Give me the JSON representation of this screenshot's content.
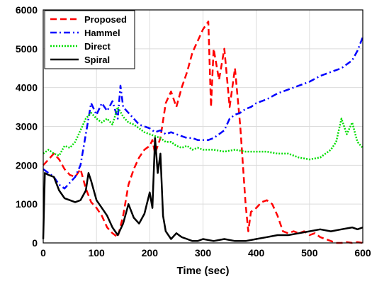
{
  "chart_data": {
    "type": "line",
    "title": "",
    "xlabel": "Time (sec)",
    "ylabel": "",
    "xlim": [
      0,
      600
    ],
    "ylim": [
      0,
      6000
    ],
    "xticks": [
      0,
      100,
      200,
      300,
      400,
      500,
      600
    ],
    "yticks": [
      0,
      1000,
      2000,
      3000,
      4000,
      5000,
      6000
    ],
    "grid": true,
    "legend_position": "top-left",
    "series": [
      {
        "name": "Proposed",
        "color": "#ff0000",
        "dash": "dashed",
        "points": [
          [
            0,
            2000
          ],
          [
            10,
            2150
          ],
          [
            20,
            2300
          ],
          [
            30,
            2150
          ],
          [
            40,
            1900
          ],
          [
            50,
            1750
          ],
          [
            60,
            1700
          ],
          [
            70,
            1900
          ],
          [
            80,
            1400
          ],
          [
            90,
            1050
          ],
          [
            100,
            900
          ],
          [
            110,
            700
          ],
          [
            120,
            400
          ],
          [
            130,
            250
          ],
          [
            140,
            150
          ],
          [
            150,
            700
          ],
          [
            160,
            1500
          ],
          [
            170,
            1900
          ],
          [
            180,
            2200
          ],
          [
            190,
            2400
          ],
          [
            200,
            2500
          ],
          [
            205,
            2650
          ],
          [
            210,
            2300
          ],
          [
            220,
            2700
          ],
          [
            230,
            3600
          ],
          [
            240,
            3900
          ],
          [
            250,
            3500
          ],
          [
            260,
            4000
          ],
          [
            270,
            4400
          ],
          [
            280,
            4900
          ],
          [
            290,
            5200
          ],
          [
            300,
            5500
          ],
          [
            310,
            5700
          ],
          [
            315,
            3500
          ],
          [
            320,
            5000
          ],
          [
            330,
            4200
          ],
          [
            340,
            5000
          ],
          [
            350,
            3500
          ],
          [
            360,
            4500
          ],
          [
            370,
            3000
          ],
          [
            380,
            1000
          ],
          [
            385,
            300
          ],
          [
            390,
            800
          ],
          [
            400,
            900
          ],
          [
            410,
            1050
          ],
          [
            420,
            1100
          ],
          [
            430,
            1000
          ],
          [
            440,
            700
          ],
          [
            450,
            300
          ],
          [
            460,
            250
          ],
          [
            470,
            300
          ],
          [
            480,
            250
          ],
          [
            490,
            300
          ],
          [
            500,
            200
          ],
          [
            510,
            250
          ],
          [
            520,
            150
          ],
          [
            530,
            100
          ],
          [
            540,
            50
          ],
          [
            550,
            0
          ],
          [
            560,
            0
          ],
          [
            570,
            20
          ],
          [
            580,
            0
          ],
          [
            590,
            20
          ],
          [
            600,
            0
          ]
        ]
      },
      {
        "name": "Hammel",
        "color": "#0000ff",
        "dash": "dashdot",
        "points": [
          [
            0,
            1900
          ],
          [
            10,
            1800
          ],
          [
            20,
            1700
          ],
          [
            30,
            1500
          ],
          [
            40,
            1400
          ],
          [
            50,
            1550
          ],
          [
            60,
            1700
          ],
          [
            70,
            2000
          ],
          [
            80,
            2800
          ],
          [
            90,
            3600
          ],
          [
            100,
            3300
          ],
          [
            110,
            3600
          ],
          [
            120,
            3400
          ],
          [
            130,
            3650
          ],
          [
            140,
            3200
          ],
          [
            145,
            4050
          ],
          [
            150,
            3500
          ],
          [
            160,
            3350
          ],
          [
            170,
            3200
          ],
          [
            180,
            3050
          ],
          [
            190,
            3000
          ],
          [
            200,
            2950
          ],
          [
            210,
            2850
          ],
          [
            220,
            2900
          ],
          [
            230,
            2800
          ],
          [
            240,
            2850
          ],
          [
            250,
            2800
          ],
          [
            260,
            2750
          ],
          [
            270,
            2700
          ],
          [
            280,
            2700
          ],
          [
            290,
            2650
          ],
          [
            300,
            2650
          ],
          [
            310,
            2650
          ],
          [
            320,
            2700
          ],
          [
            330,
            2800
          ],
          [
            340,
            2900
          ],
          [
            350,
            3200
          ],
          [
            360,
            3300
          ],
          [
            370,
            3350
          ],
          [
            380,
            3450
          ],
          [
            390,
            3500
          ],
          [
            400,
            3600
          ],
          [
            420,
            3700
          ],
          [
            440,
            3850
          ],
          [
            460,
            3950
          ],
          [
            480,
            4050
          ],
          [
            500,
            4150
          ],
          [
            520,
            4300
          ],
          [
            540,
            4400
          ],
          [
            560,
            4500
          ],
          [
            580,
            4700
          ],
          [
            590,
            4950
          ],
          [
            600,
            5300
          ]
        ]
      },
      {
        "name": "Direct",
        "color": "#00dd00",
        "dash": "dotted",
        "points": [
          [
            0,
            2300
          ],
          [
            10,
            2400
          ],
          [
            20,
            2300
          ],
          [
            30,
            2250
          ],
          [
            40,
            2500
          ],
          [
            50,
            2450
          ],
          [
            60,
            2600
          ],
          [
            70,
            2900
          ],
          [
            80,
            3200
          ],
          [
            90,
            3350
          ],
          [
            100,
            3200
          ],
          [
            110,
            3100
          ],
          [
            120,
            3200
          ],
          [
            130,
            3050
          ],
          [
            140,
            3500
          ],
          [
            150,
            3250
          ],
          [
            160,
            3100
          ],
          [
            170,
            3050
          ],
          [
            180,
            2950
          ],
          [
            190,
            2850
          ],
          [
            200,
            2800
          ],
          [
            210,
            2750
          ],
          [
            220,
            2700
          ],
          [
            230,
            2600
          ],
          [
            240,
            2600
          ],
          [
            250,
            2500
          ],
          [
            260,
            2450
          ],
          [
            270,
            2500
          ],
          [
            280,
            2400
          ],
          [
            290,
            2450
          ],
          [
            300,
            2400
          ],
          [
            320,
            2400
          ],
          [
            340,
            2350
          ],
          [
            360,
            2400
          ],
          [
            380,
            2350
          ],
          [
            400,
            2350
          ],
          [
            420,
            2350
          ],
          [
            440,
            2300
          ],
          [
            460,
            2300
          ],
          [
            480,
            2200
          ],
          [
            500,
            2150
          ],
          [
            520,
            2200
          ],
          [
            540,
            2400
          ],
          [
            550,
            2600
          ],
          [
            560,
            3200
          ],
          [
            570,
            2800
          ],
          [
            580,
            3100
          ],
          [
            590,
            2600
          ],
          [
            600,
            2450
          ]
        ]
      },
      {
        "name": "Spiral",
        "color": "#000000",
        "dash": "solid",
        "points": [
          [
            0,
            100
          ],
          [
            3,
            1800
          ],
          [
            10,
            1750
          ],
          [
            20,
            1700
          ],
          [
            30,
            1350
          ],
          [
            40,
            1150
          ],
          [
            50,
            1100
          ],
          [
            60,
            1050
          ],
          [
            70,
            1100
          ],
          [
            80,
            1350
          ],
          [
            85,
            1800
          ],
          [
            90,
            1600
          ],
          [
            100,
            1100
          ],
          [
            110,
            900
          ],
          [
            120,
            700
          ],
          [
            130,
            400
          ],
          [
            140,
            200
          ],
          [
            150,
            500
          ],
          [
            160,
            1000
          ],
          [
            170,
            650
          ],
          [
            180,
            500
          ],
          [
            190,
            750
          ],
          [
            200,
            1300
          ],
          [
            205,
            900
          ],
          [
            210,
            2700
          ],
          [
            215,
            1800
          ],
          [
            220,
            2300
          ],
          [
            225,
            700
          ],
          [
            230,
            300
          ],
          [
            240,
            100
          ],
          [
            250,
            250
          ],
          [
            260,
            150
          ],
          [
            270,
            100
          ],
          [
            280,
            50
          ],
          [
            290,
            50
          ],
          [
            300,
            100
          ],
          [
            320,
            50
          ],
          [
            340,
            100
          ],
          [
            360,
            50
          ],
          [
            380,
            50
          ],
          [
            400,
            100
          ],
          [
            420,
            150
          ],
          [
            440,
            200
          ],
          [
            460,
            200
          ],
          [
            480,
            250
          ],
          [
            500,
            300
          ],
          [
            520,
            350
          ],
          [
            540,
            300
          ],
          [
            560,
            350
          ],
          [
            580,
            400
          ],
          [
            590,
            350
          ],
          [
            600,
            400
          ]
        ]
      }
    ]
  }
}
